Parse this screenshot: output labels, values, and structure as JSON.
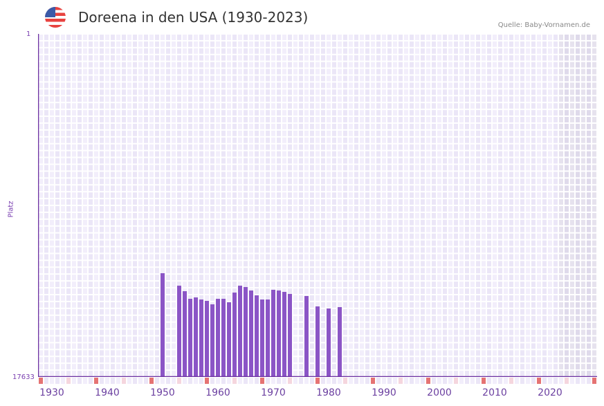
{
  "header": {
    "title": "Doreena in den USA (1930-2023)",
    "source": "Quelle: Baby-Vornamen.de",
    "flag_icon": "us-flag-icon"
  },
  "colors": {
    "bar": "#8b55c6",
    "axis": "#6b2fa0",
    "grid_a": "#f2eefb",
    "grid_b": "#ebe6f7",
    "future_a": "#e6e2ee",
    "future_b": "#dfdaeb",
    "marker_strong": "#e57373",
    "marker_light": "#f5d6de"
  },
  "chart_data": {
    "type": "bar",
    "title": "Doreena in den USA (1930-2023)",
    "xlabel": "",
    "ylabel": "Platz",
    "y_inverted": true,
    "ylim": [
      17633,
      1
    ],
    "y_ticks": [
      "1",
      "17633"
    ],
    "x_range": [
      1928,
      2028
    ],
    "x_ticks": [
      "1930",
      "1940",
      "1950",
      "1960",
      "1970",
      "1980",
      "1990",
      "2000",
      "2010",
      "2020"
    ],
    "grid": true,
    "future_shade_from": 2022,
    "categories": [
      1950,
      1953,
      1954,
      1955,
      1956,
      1957,
      1958,
      1959,
      1960,
      1961,
      1962,
      1963,
      1964,
      1965,
      1966,
      1967,
      1968,
      1969,
      1970,
      1971,
      1972,
      1973,
      1976,
      1978,
      1980,
      1982
    ],
    "values": [
      12301,
      12941,
      13225,
      13616,
      13545,
      13652,
      13723,
      13901,
      13616,
      13616,
      13794,
      13296,
      12941,
      13012,
      13190,
      13438,
      13652,
      13652,
      13154,
      13190,
      13261,
      13367,
      13474,
      14007,
      14114,
      14043
    ]
  }
}
